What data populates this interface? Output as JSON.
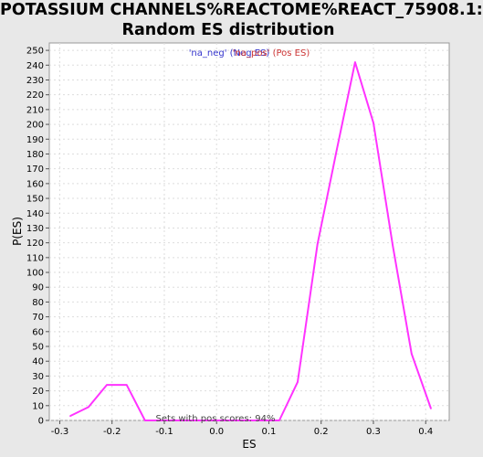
{
  "chart_data": {
    "type": "line",
    "title_lines": [
      "POTASSIUM CHANNELS%REACTOME%REACT_75908.1:",
      "Random ES distribution"
    ],
    "xlabel": "ES",
    "ylabel": "P(ES)",
    "xlim": [
      -0.32,
      0.445
    ],
    "ylim": [
      0,
      255
    ],
    "xticks": [
      "-0.3",
      "-0.2",
      "-0.1",
      "0.0",
      "0.1",
      "0.2",
      "0.3",
      "0.4"
    ],
    "xtick_values": [
      -0.3,
      -0.2,
      -0.1,
      0.0,
      0.1,
      0.2,
      0.3,
      0.4
    ],
    "yticks": [
      0,
      10,
      20,
      30,
      40,
      50,
      60,
      70,
      80,
      90,
      100,
      110,
      120,
      130,
      140,
      150,
      160,
      170,
      180,
      190,
      200,
      210,
      220,
      230,
      240,
      250
    ],
    "grid": true,
    "legend": {
      "neg_label": "'na_neg' (Neg ES)",
      "pos_label": "'na_pos' (Pos ES)",
      "neg_color": "#3333cc",
      "pos_color": "#cc3333",
      "placement": "top-center"
    },
    "annotation": "Sets with pos scores: 94%",
    "series": [
      {
        "color": "#ff33ff",
        "x": [
          -0.28,
          -0.245,
          -0.21,
          -0.172,
          -0.137,
          -0.1,
          0.05,
          0.12,
          0.155,
          0.193,
          0.23,
          0.265,
          0.3,
          0.337,
          0.373,
          0.41
        ],
        "y": [
          3,
          9,
          24,
          24,
          0,
          0,
          0,
          0,
          26,
          119,
          183,
          242,
          201,
          118,
          45,
          8
        ]
      }
    ]
  }
}
